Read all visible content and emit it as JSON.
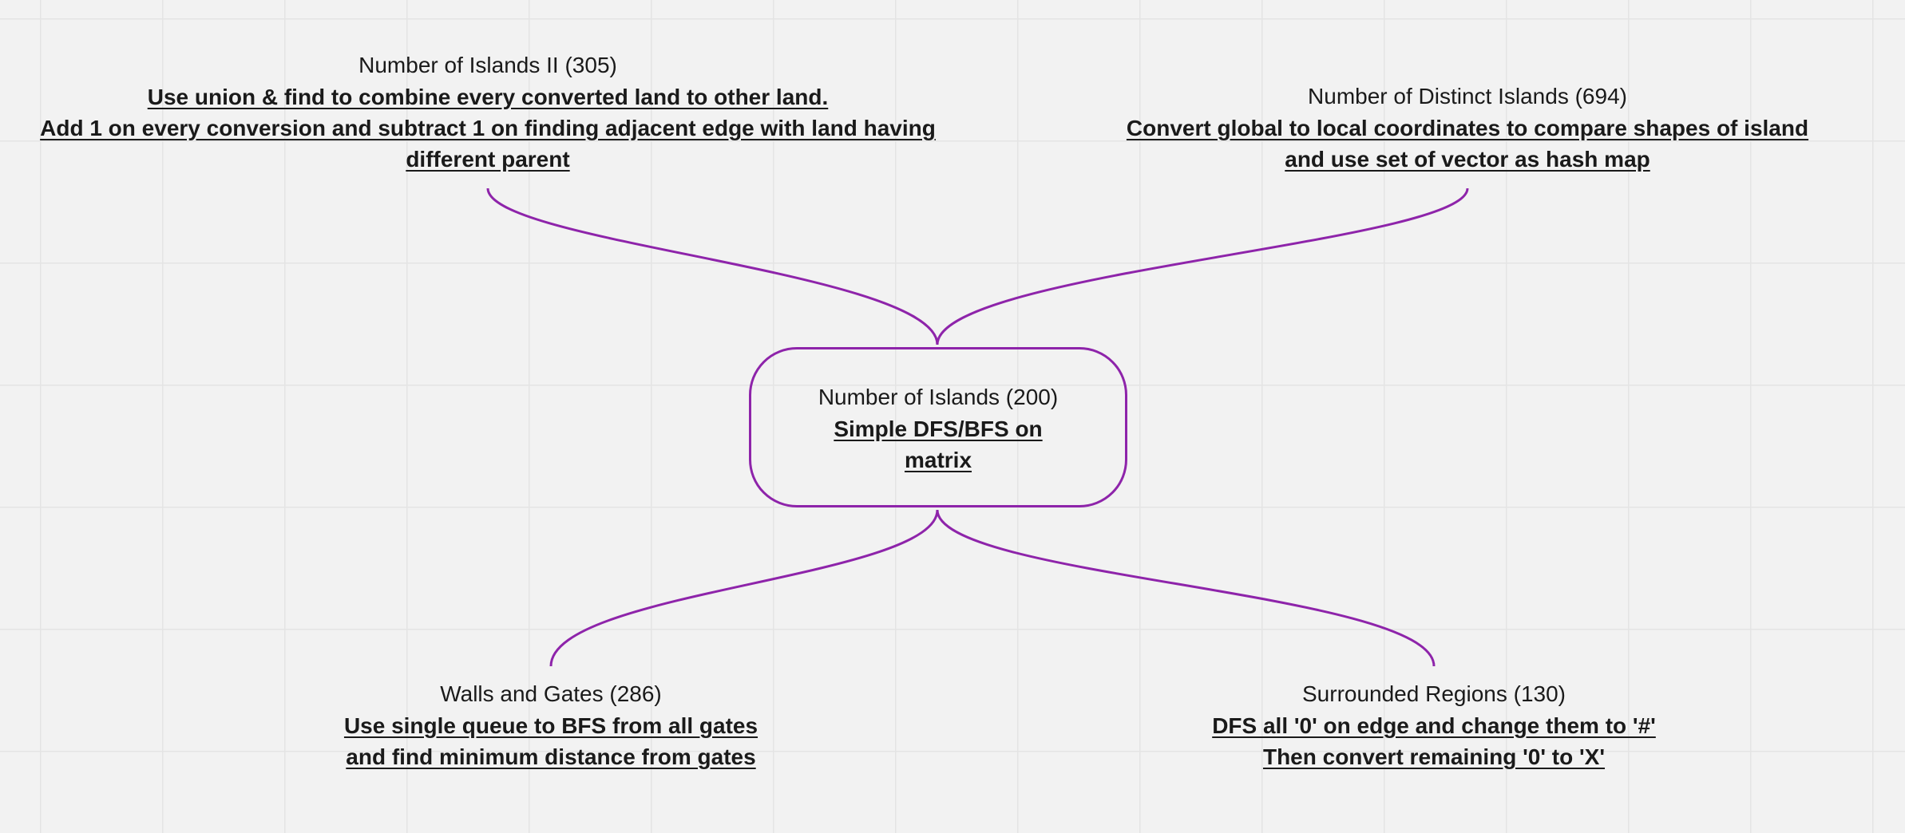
{
  "canvas": {
    "background": "#f2f2f2",
    "grid_color": "#e4e4e4",
    "connector_color": "#8e24aa"
  },
  "center": {
    "title": "Number of Islands (200)",
    "body": [
      "Simple DFS/BFS on ",
      "matrix"
    ]
  },
  "top_left": {
    "title": "Number of Islands II (305)",
    "body": [
      "Use union & find to combine every converted land to other land.",
      "Add 1 on every conversion and subtract 1 on finding adjacent edge with land having ",
      "different parent"
    ]
  },
  "top_right": {
    "title": "Number of Distinct Islands (694)",
    "body": [
      "Convert global to local coordinates to compare shapes of island",
      "and use set of vector as hash map"
    ]
  },
  "bottom_left": {
    "title": "Walls and Gates (286)",
    "body": [
      "Use single queue to BFS from all gates ",
      "and find minimum distance from gates"
    ]
  },
  "bottom_right": {
    "title": "Surrounded Regions (130)",
    "body": [
      "DFS all '0' on edge and change them to '#'",
      "Then convert remaining '0' to 'X'"
    ]
  }
}
